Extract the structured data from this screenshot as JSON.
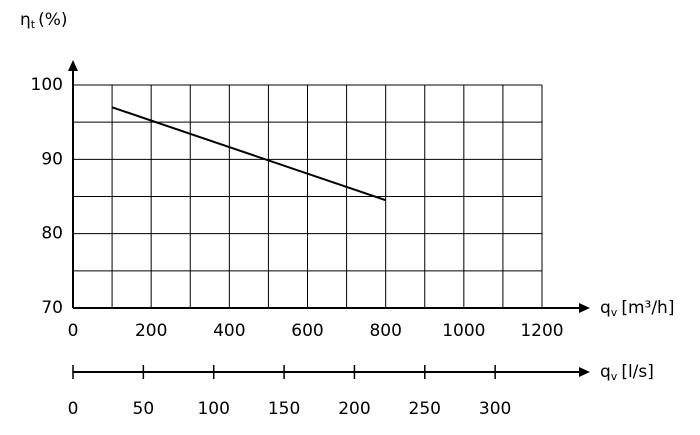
{
  "chart_data": {
    "type": "line",
    "y_label": {
      "symbol": "η",
      "subscript": "t",
      "unit": "(%)"
    },
    "x_label": {
      "symbol": "q",
      "subscript": "v",
      "unit": "[m³/h]"
    },
    "x2_label": {
      "symbol": "q",
      "subscript": "v",
      "unit": "[l/s]"
    },
    "series": [
      {
        "x": [
          100,
          800
        ],
        "values": [
          97,
          84.5
        ],
        "color": "#000000"
      }
    ],
    "xlim": [
      0,
      1200
    ],
    "xticks": [
      0,
      200,
      400,
      600,
      800,
      1000,
      1200
    ],
    "xgrid_minor": [
      100,
      300,
      500,
      700,
      900,
      1100
    ],
    "x2lim": [
      0,
      333.3
    ],
    "x2ticks": [
      0,
      50,
      100,
      150,
      200,
      250,
      300
    ],
    "ylim": [
      70,
      100
    ],
    "yticks": [
      70,
      80,
      90,
      100
    ],
    "ygrid_minor": [
      75,
      85,
      95
    ],
    "grid": true
  }
}
